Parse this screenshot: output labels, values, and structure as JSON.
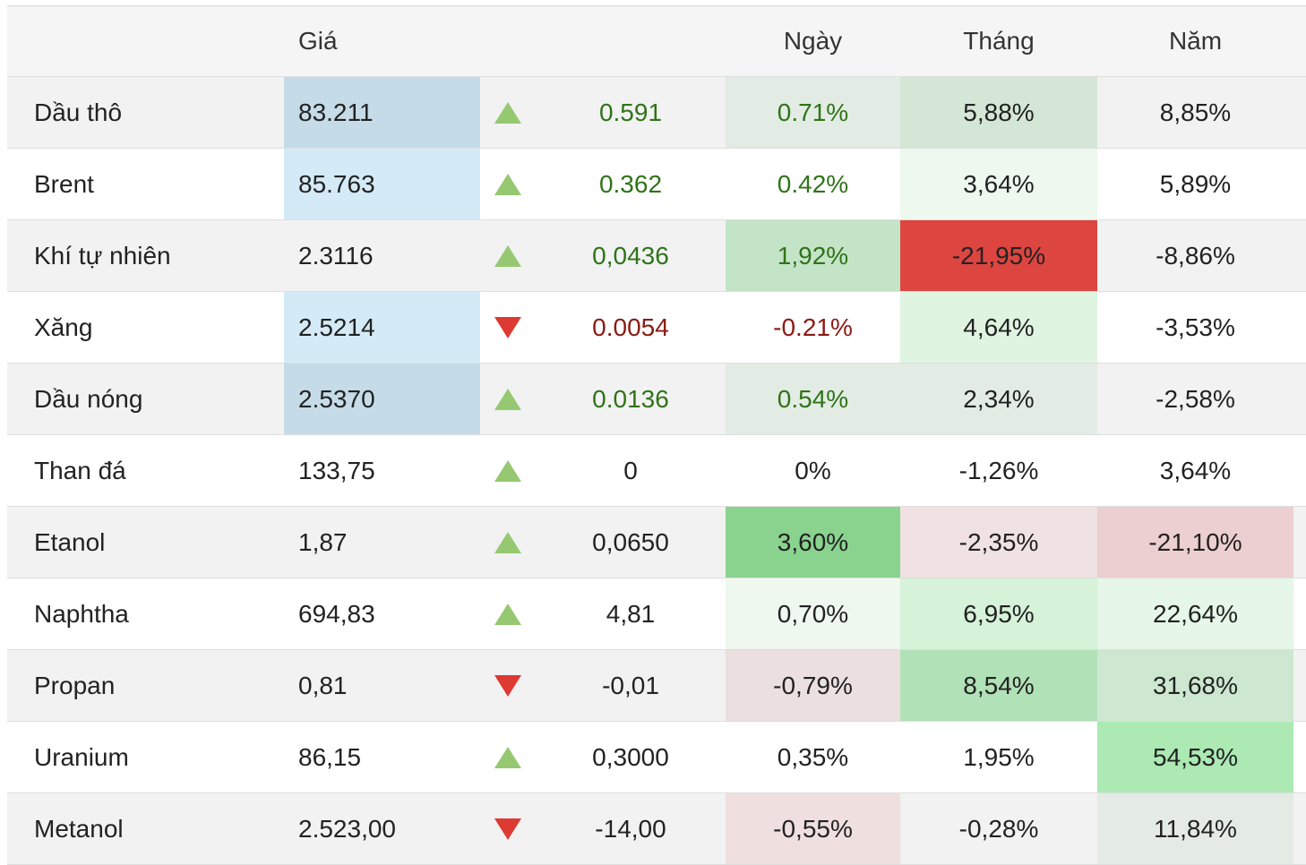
{
  "header": {
    "name": "",
    "price": "Giá",
    "change": "",
    "day": "Ngày",
    "month": "Tháng",
    "year": "Năm"
  },
  "colors": {
    "up": "#96c871",
    "down": "#dd3a33",
    "text_up": "#2f7318",
    "text_down": "#8b1a15"
  },
  "rows": [
    {
      "name": "Dầu thô",
      "price": "83.211",
      "direction": "up",
      "change": "0.591",
      "day": "0.71%",
      "month": "5,88%",
      "year": "8,85%",
      "text_color": "#2f7318",
      "price_bg": "#c5dce8",
      "day_bg": "#e3ece4",
      "month_bg": "#d4e7d6",
      "year_bg": ""
    },
    {
      "name": "Brent",
      "price": "85.763",
      "direction": "up",
      "change": "0.362",
      "day": "0.42%",
      "month": "3,64%",
      "year": "5,89%",
      "text_color": "#2f7318",
      "price_bg": "#d4eaf7",
      "day_bg": "",
      "month_bg": "#edf8ee",
      "year_bg": ""
    },
    {
      "name": "Khí tự nhiên",
      "price": "2.3116",
      "direction": "up",
      "change": "0,0436",
      "day": "1,92%",
      "month": "-21,95%",
      "year": "-8,86%",
      "text_color": "#2f7318",
      "price_bg": "",
      "day_bg": "#c4e4c7",
      "month_bg": "#dd4540",
      "year_bg": ""
    },
    {
      "name": "Xăng",
      "price": "2.5214",
      "direction": "down",
      "change": "0.0054",
      "day": "-0.21%",
      "month": "4,64%",
      "year": "-3,53%",
      "text_color": "#8b1a15",
      "price_bg": "#d4eaf7",
      "day_bg": "",
      "month_bg": "#dff4e1",
      "year_bg": ""
    },
    {
      "name": "Dầu nóng",
      "price": "2.5370",
      "direction": "up",
      "change": "0.0136",
      "day": "0.54%",
      "month": "2,34%",
      "year": "-2,58%",
      "text_color": "#2f7318",
      "price_bg": "#c5dce8",
      "day_bg": "#e3ece4",
      "month_bg": "#e3ece4",
      "year_bg": ""
    },
    {
      "name": "Than đá",
      "price": "133,75",
      "direction": "up",
      "change": "0",
      "day": "0%",
      "month": "-1,26%",
      "year": "3,64%",
      "text_color": "",
      "price_bg": "",
      "day_bg": "",
      "month_bg": "",
      "year_bg": ""
    },
    {
      "name": "Etanol",
      "price": "1,87",
      "direction": "up",
      "change": "0,0650",
      "day": "3,60%",
      "month": "-2,35%",
      "year": "-21,10%",
      "text_color": "",
      "price_bg": "",
      "day_bg": "#89d38f",
      "month_bg": "#f0e2e2",
      "year_bg": "#eccfd0"
    },
    {
      "name": "Naphtha",
      "price": "694,83",
      "direction": "up",
      "change": "4,81",
      "day": "0,70%",
      "month": "6,95%",
      "year": "22,64%",
      "text_color": "",
      "price_bg": "",
      "day_bg": "#eef8ef",
      "month_bg": "#d6f2d9",
      "year_bg": "#e6f6e8"
    },
    {
      "name": "Propan",
      "price": "0,81",
      "direction": "down",
      "change": "-0,01",
      "day": "-0,79%",
      "month": "8,54%",
      "year": "31,68%",
      "text_color": "",
      "price_bg": "",
      "day_bg": "#ecdfdf",
      "month_bg": "#b1e1b6",
      "year_bg": "#cde7d0"
    },
    {
      "name": "Uranium",
      "price": "86,15",
      "direction": "up",
      "change": "0,3000",
      "day": "0,35%",
      "month": "1,95%",
      "year": "54,53%",
      "text_color": "",
      "price_bg": "",
      "day_bg": "",
      "month_bg": "",
      "year_bg": "#ace9b3"
    },
    {
      "name": "Metanol",
      "price": "2.523,00",
      "direction": "down",
      "change": "-14,00",
      "day": "-0,55%",
      "month": "-0,28%",
      "year": "11,84%",
      "text_color": "",
      "price_bg": "",
      "day_bg": "#efdfdf",
      "month_bg": "",
      "year_bg": "#e3ebe4"
    }
  ]
}
